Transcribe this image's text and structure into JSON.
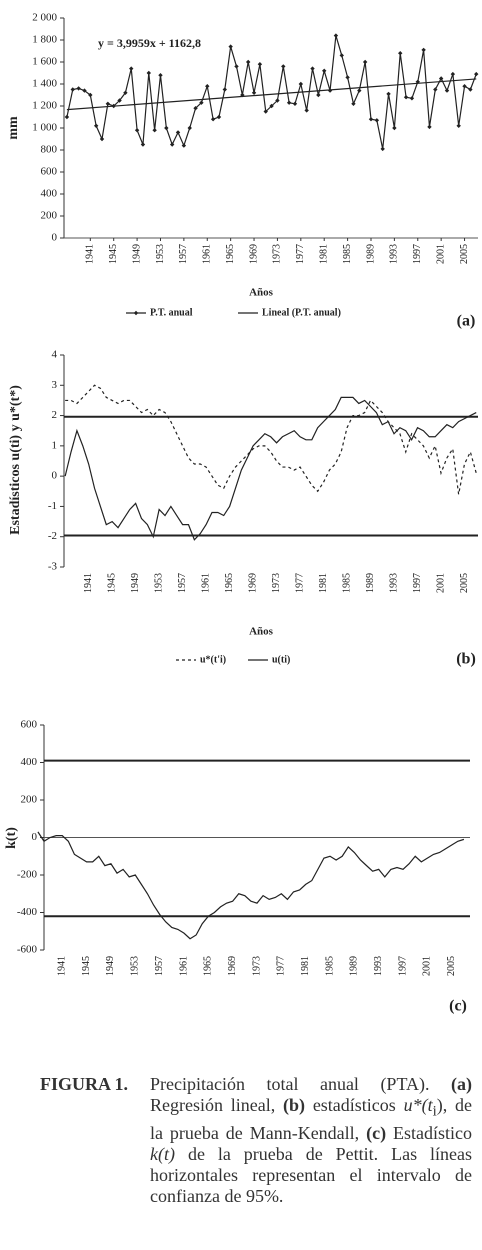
{
  "chart_data": [
    {
      "type": "line",
      "y_label": "mm",
      "x_label": "Años",
      "annotation": "y = 3,9959x + 1162,8",
      "panel_label": "(a)",
      "x": [
        1937,
        1938,
        1939,
        1940,
        1941,
        1942,
        1943,
        1944,
        1945,
        1946,
        1947,
        1948,
        1949,
        1950,
        1951,
        1952,
        1953,
        1954,
        1955,
        1956,
        1957,
        1958,
        1959,
        1960,
        1961,
        1962,
        1963,
        1964,
        1965,
        1966,
        1967,
        1968,
        1969,
        1970,
        1971,
        1972,
        1973,
        1974,
        1975,
        1976,
        1977,
        1978,
        1979,
        1980,
        1981,
        1982,
        1983,
        1984,
        1985,
        1986,
        1987,
        1988,
        1989,
        1990,
        1991,
        1992,
        1993,
        1994,
        1995,
        1996,
        1997,
        1998,
        1999,
        2000,
        2001,
        2002,
        2003,
        2004,
        2005,
        2006,
        2007
      ],
      "xlim": [
        1936.5,
        2007.3
      ],
      "xticks": [
        1941,
        1945,
        1949,
        1953,
        1957,
        1961,
        1965,
        1969,
        1973,
        1977,
        1981,
        1985,
        1989,
        1993,
        1997,
        2001,
        2005
      ],
      "ylim": [
        0,
        2000
      ],
      "yticks": [
        0,
        200,
        400,
        600,
        800,
        {
          "value": 1000,
          "label": "1 000"
        },
        {
          "value": 1200,
          "label": "1 200"
        },
        {
          "value": 1400,
          "label": "1 400"
        },
        {
          "value": 1600,
          "label": "1 600"
        },
        {
          "value": 1800,
          "label": "1 800"
        },
        {
          "value": 2000,
          "label": "2 000"
        }
      ],
      "zero_line": true,
      "series": [
        {
          "name": "P.T. anual",
          "color": "#222222",
          "marker": "diamond",
          "dashed": false,
          "values": [
            1100,
            1350,
            1360,
            1340,
            1300,
            1020,
            900,
            1220,
            1200,
            1250,
            1320,
            1540,
            980,
            850,
            1500,
            980,
            1480,
            1000,
            850,
            960,
            840,
            1000,
            1180,
            1230,
            1380,
            1080,
            1100,
            1350,
            1740,
            1560,
            1300,
            1600,
            1320,
            1580,
            1150,
            1200,
            1250,
            1560,
            1230,
            1220,
            1400,
            1160,
            1540,
            1300,
            1520,
            1340,
            1840,
            1660,
            1460,
            1220,
            1340,
            1600,
            1080,
            1070,
            810,
            1310,
            1000,
            1680,
            1280,
            1270,
            1420,
            1710,
            1010,
            1350,
            1450,
            1340,
            1490,
            1020,
            1380,
            1350,
            1490
          ]
        },
        {
          "name": "Lineal (P.T. anual)",
          "color": "#222222",
          "dashed": false,
          "x": [
            1937,
            2007
          ],
          "values": [
            1167,
            1446
          ]
        }
      ]
    },
    {
      "type": "line",
      "y_label": "Estadísticos u(ti) y u*(t*)",
      "x_label": "Años",
      "panel_label": "(b)",
      "x": [
        1937,
        1938,
        1939,
        1940,
        1941,
        1942,
        1943,
        1944,
        1945,
        1946,
        1947,
        1948,
        1949,
        1950,
        1951,
        1952,
        1953,
        1954,
        1955,
        1956,
        1957,
        1958,
        1959,
        1960,
        1961,
        1962,
        1963,
        1964,
        1965,
        1966,
        1967,
        1968,
        1969,
        1970,
        1971,
        1972,
        1973,
        1974,
        1975,
        1976,
        1977,
        1978,
        1979,
        1980,
        1981,
        1982,
        1983,
        1984,
        1985,
        1986,
        1987,
        1988,
        1989,
        1990,
        1991,
        1992,
        1993,
        1994,
        1995,
        1996,
        1997,
        1998,
        1999,
        2000,
        2001,
        2002,
        2003,
        2004,
        2005,
        2006,
        2007
      ],
      "xlim": [
        1936.8,
        2007.3
      ],
      "xticks": [
        1941,
        1945,
        1949,
        1953,
        1957,
        1961,
        1965,
        1969,
        1973,
        1977,
        1981,
        1985,
        1989,
        1993,
        1997,
        2001,
        2005
      ],
      "ylim": [
        -3,
        4
      ],
      "yticks": [
        -3,
        -2,
        -1,
        0,
        1,
        2,
        3,
        4
      ],
      "zero_line": false,
      "hlines": [
        1.96,
        -1.96
      ],
      "series": [
        {
          "name": "u*(t'i)",
          "color": "#222222",
          "dashed": true,
          "values": [
            2.5,
            2.5,
            2.4,
            2.6,
            2.8,
            3.0,
            2.9,
            2.6,
            2.5,
            2.4,
            2.5,
            2.5,
            2.3,
            2.1,
            2.2,
            2.0,
            2.2,
            2.1,
            1.8,
            1.4,
            1.0,
            0.6,
            0.4,
            0.4,
            0.3,
            0.0,
            -0.3,
            -0.4,
            0.0,
            0.3,
            0.5,
            0.7,
            0.9,
            1.0,
            1.0,
            0.8,
            0.5,
            0.3,
            0.3,
            0.2,
            0.3,
            0.0,
            -0.3,
            -0.5,
            -0.2,
            0.2,
            0.4,
            0.8,
            1.6,
            2.0,
            2.0,
            2.1,
            2.5,
            2.3,
            2.1,
            1.8,
            1.6,
            1.4,
            0.8,
            1.4,
            1.2,
            1.0,
            0.6,
            1.0,
            0.1,
            0.6,
            0.9,
            -0.6,
            0.4,
            0.8,
            0.1
          ]
        },
        {
          "name": "u(ti)",
          "color": "#222222",
          "dashed": false,
          "values": [
            0,
            0.8,
            1.5,
            1.0,
            0.4,
            -0.4,
            -1.0,
            -1.6,
            -1.5,
            -1.7,
            -1.4,
            -1.1,
            -0.9,
            -1.4,
            -1.6,
            -2.0,
            -1.1,
            -1.3,
            -1.0,
            -1.3,
            -1.6,
            -1.6,
            -2.1,
            -1.9,
            -1.6,
            -1.2,
            -1.2,
            -1.3,
            -1.0,
            -0.4,
            0.2,
            0.6,
            1.0,
            1.2,
            1.4,
            1.3,
            1.1,
            1.3,
            1.4,
            1.5,
            1.3,
            1.2,
            1.2,
            1.6,
            1.8,
            2.0,
            2.2,
            2.6,
            2.6,
            2.6,
            2.4,
            2.5,
            2.3,
            2.1,
            1.7,
            1.8,
            1.4,
            1.6,
            1.5,
            1.2,
            1.6,
            1.5,
            1.3,
            1.3,
            1.5,
            1.7,
            1.6,
            1.8,
            1.9,
            2.0,
            2.1
          ]
        }
      ]
    },
    {
      "type": "line",
      "y_label": "k(t)",
      "panel_label": "(c)",
      "x": [
        1937,
        1938,
        1939,
        1940,
        1941,
        1942,
        1943,
        1944,
        1945,
        1946,
        1947,
        1948,
        1949,
        1950,
        1951,
        1952,
        1953,
        1954,
        1955,
        1956,
        1957,
        1958,
        1959,
        1960,
        1961,
        1962,
        1963,
        1964,
        1965,
        1966,
        1967,
        1968,
        1969,
        1970,
        1971,
        1972,
        1973,
        1974,
        1975,
        1976,
        1977,
        1978,
        1979,
        1980,
        1981,
        1982,
        1983,
        1984,
        1985,
        1986,
        1987,
        1988,
        1989,
        1990,
        1991,
        1992,
        1993,
        1994,
        1995,
        1996,
        1997,
        1998,
        1999,
        2000,
        2001,
        2002,
        2003,
        2004,
        2005,
        2006,
        2007
      ],
      "xlim": [
        1938,
        2008
      ],
      "xticks": [
        1941,
        1945,
        1949,
        1953,
        1957,
        1961,
        1965,
        1969,
        1973,
        1977,
        1981,
        1985,
        1989,
        1993,
        1997,
        2001,
        2005
      ],
      "ylim": [
        -600,
        600
      ],
      "yticks": [
        -600,
        -400,
        -200,
        0,
        200,
        400,
        600
      ],
      "zero_line": true,
      "hlines": [
        410,
        -420
      ],
      "series": [
        {
          "name": "k(t)",
          "color": "#222222",
          "dashed": false,
          "values": [
            30,
            -20,
            0,
            10,
            10,
            -20,
            -90,
            -110,
            -130,
            -130,
            -100,
            -150,
            -140,
            -190,
            -170,
            -210,
            -200,
            -250,
            -300,
            -360,
            -410,
            -450,
            -480,
            -490,
            -510,
            -540,
            -520,
            -460,
            -420,
            -400,
            -370,
            -350,
            -340,
            -300,
            -310,
            -340,
            -350,
            -310,
            -330,
            -320,
            -300,
            -330,
            -290,
            -280,
            -250,
            -230,
            -170,
            -110,
            -100,
            -120,
            -100,
            -50,
            -80,
            -120,
            -150,
            -180,
            -170,
            -210,
            -170,
            -160,
            -170,
            -140,
            -100,
            -130,
            -110,
            -90,
            -80,
            -60,
            -40,
            -20,
            -10
          ]
        }
      ]
    }
  ],
  "caption": {
    "label": "FIGURA 1.",
    "parts": [
      "Precipitación total anual (PTA).",
      "(a)",
      "Regresión lineal,",
      "(b)",
      "estadísticos",
      "u*(t",
      "i",
      "),",
      "de la prueba de Mann-Kendall,",
      "(c)",
      "Estadístico",
      "k(t)",
      "de la prueba de Pettit. Las líneas horizontales representan el intervalo de confianza de 95%."
    ]
  }
}
